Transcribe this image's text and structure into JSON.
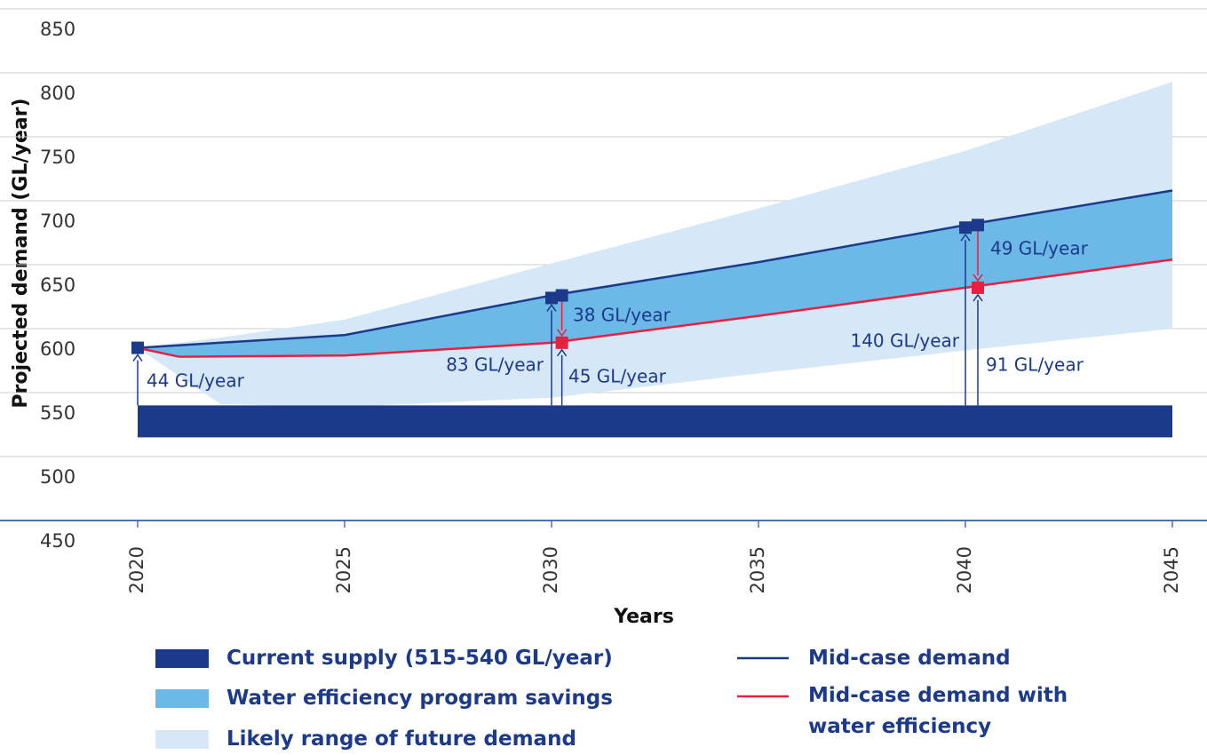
{
  "chart_data": {
    "type": "line",
    "y_label": "Projected demand (GL/year)",
    "x_label": "Years",
    "xlim": [
      2020,
      2045
    ],
    "xticks": [
      2020,
      2025,
      2030,
      2035,
      2040,
      2045
    ],
    "ylim": [
      450,
      850
    ],
    "yticks": [
      450,
      500,
      550,
      600,
      650,
      700,
      750,
      800,
      850
    ],
    "grid": true,
    "supply": {
      "name": "Current supply (515-540 GL/year)",
      "color": "#1b3a8c",
      "range": [
        515,
        540
      ]
    },
    "savings": {
      "name": "Water efficiency program savings",
      "color": "#6cb8e6"
    },
    "likely_range": {
      "name": "Likely range of future demand",
      "color": "#d6e8f7",
      "x": [
        2020,
        2022,
        2025,
        2030,
        2035,
        2040,
        2045
      ],
      "upper": [
        585,
        593,
        607,
        651,
        694,
        739,
        793
      ],
      "lower": [
        585,
        541,
        539,
        546,
        565,
        583,
        600
      ]
    },
    "series": [
      {
        "name": "Mid-case demand",
        "color": "#1b3a8c",
        "x": [
          2020,
          2025,
          2030,
          2035,
          2040,
          2045
        ],
        "values": [
          585,
          595,
          626,
          652,
          681,
          708
        ]
      },
      {
        "name": "Mid-case demand with water efficiency",
        "color": "#e8203f",
        "x": [
          2020,
          2021,
          2025,
          2030,
          2035,
          2040,
          2045
        ],
        "values": [
          585,
          578,
          579,
          589,
          610,
          632,
          654
        ]
      }
    ],
    "markers": [
      {
        "x": 2020,
        "y": 585,
        "color": "#1b3a8c"
      },
      {
        "x": 2030,
        "y": 624,
        "color": "#1b3a8c"
      },
      {
        "x": 2030.25,
        "y": 626,
        "color": "#1b3a8c"
      },
      {
        "x": 2040,
        "y": 679,
        "color": "#1b3a8c"
      },
      {
        "x": 2040.3,
        "y": 681,
        "color": "#1b3a8c"
      },
      {
        "x": 2030.25,
        "y": 589,
        "color": "#e8203f"
      },
      {
        "x": 2040.3,
        "y": 632,
        "color": "#e8203f"
      }
    ],
    "annotations": [
      "44 GL/year",
      "83 GL/year",
      "45 GL/year",
      "38 GL/year",
      "140 GL/year",
      "91 GL/year",
      "49 GL/year"
    ]
  }
}
